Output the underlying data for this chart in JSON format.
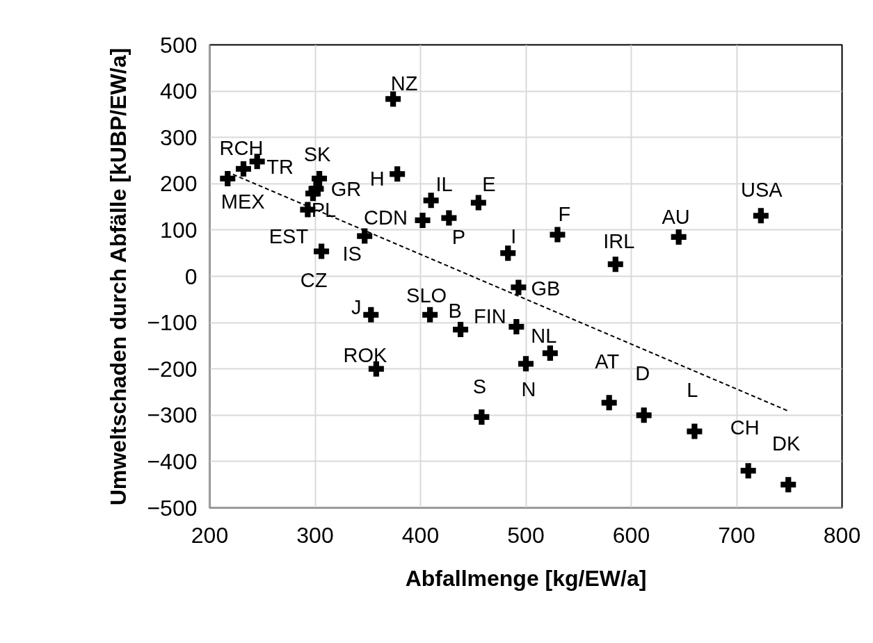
{
  "chart_data": {
    "type": "scatter",
    "xlabel": "Abfallmenge [kg/EW/a]",
    "ylabel": "Umweltschaden durch Abfälle [kUBP/EW/a]",
    "xlim": [
      200,
      800
    ],
    "xticks": [
      200,
      300,
      400,
      500,
      600,
      700,
      800
    ],
    "ylim": [
      -500,
      500
    ],
    "yticks": [
      -500,
      -400,
      -300,
      -200,
      -100,
      0,
      100,
      200,
      300,
      400,
      500
    ],
    "grid": true,
    "series": [
      {
        "marker": "cross",
        "color": "#000000",
        "x": [
          217,
          232,
          245,
          304,
          301,
          298,
          293,
          378,
          374,
          306,
          347,
          402,
          410,
          427,
          455,
          483,
          530,
          585,
          645,
          723,
          493,
          353,
          409,
          438,
          491,
          523,
          500,
          358,
          458,
          579,
          612,
          660,
          711,
          749
        ],
        "values": [
          211,
          232,
          248,
          211,
          189,
          179,
          144,
          221,
          383,
          54,
          87,
          121,
          164,
          126,
          159,
          50,
          90,
          26,
          85,
          131,
          -24,
          -83,
          -83,
          -115,
          -109,
          -166,
          -189,
          -200,
          -304,
          -273,
          -300,
          -335,
          -420,
          -450
        ],
        "value_labels": [
          "MEX",
          "RCH",
          "TR",
          "SK",
          "GR",
          "EST",
          "PL",
          "H",
          "NZ",
          "CZ",
          "IS",
          "CDN",
          "IL",
          "P",
          "E",
          "I",
          "F",
          "IRL",
          "AU",
          "USA",
          "GB",
          "J",
          "SLO",
          "B",
          "FIN",
          "NL",
          "N",
          "ROK",
          "S",
          "AT",
          "D",
          "L",
          "CH",
          "DK"
        ]
      },
      {
        "type": "line",
        "color": "#000000",
        "line_style": "dashed",
        "x": [
          216,
          749
        ],
        "values": [
          226,
          -291
        ]
      }
    ]
  }
}
